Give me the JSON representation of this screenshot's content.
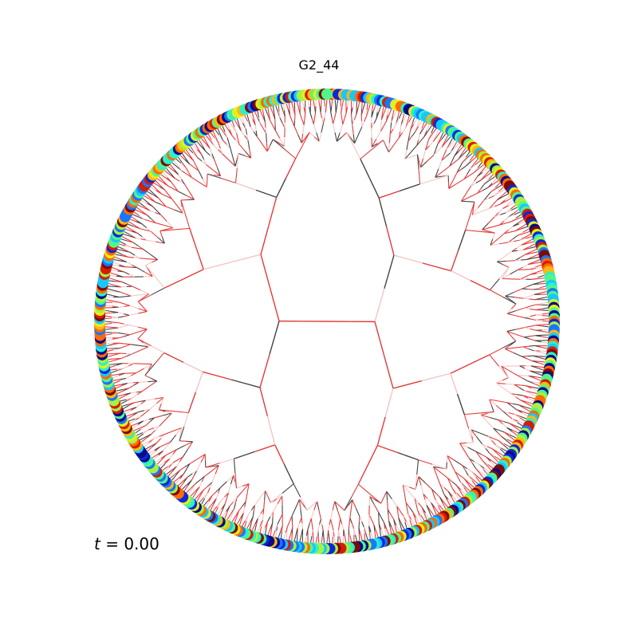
{
  "title": "G2_44",
  "time_label": {
    "variable": "t",
    "operator": " = ",
    "value": "0.00"
  },
  "tree": {
    "type": "circular-binary-tree",
    "depth": 9,
    "leaf_count": 512,
    "edge_colors": [
      "#e23b3b",
      "#444444",
      "#f4c4c4"
    ],
    "leaf_palette": [
      "#0a0a8a",
      "#0c28d8",
      "#1976ff",
      "#19c7ff",
      "#2ef0c8",
      "#52f58a",
      "#a6f243",
      "#e5ef1f",
      "#ffb80f",
      "#ff6a06",
      "#d51d07",
      "#7d0a0a"
    ]
  }
}
